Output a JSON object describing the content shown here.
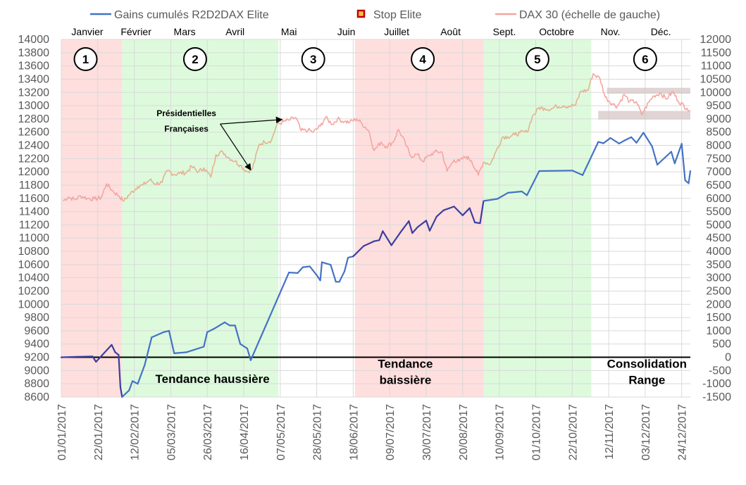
{
  "chart_data": {
    "type": "line",
    "legend_position": "top",
    "legend": [
      {
        "label": "Gains cumulés R2D2DAX Elite",
        "color": "#4472c4",
        "kind": "line"
      },
      {
        "label": "Stop Elite",
        "color": "#c00000",
        "kind": "marker"
      },
      {
        "label": "DAX 30 (échelle de gauche)",
        "color": "#f4a6a0",
        "kind": "line"
      }
    ],
    "left_axis": {
      "min": 8600,
      "max": 14000,
      "step": 200,
      "ticks": [
        "8600",
        "8800",
        "9000",
        "9200",
        "9400",
        "9600",
        "9800",
        "10000",
        "10200",
        "10400",
        "10600",
        "10800",
        "11000",
        "11200",
        "11400",
        "11600",
        "11800",
        "12000",
        "12200",
        "12400",
        "12600",
        "12800",
        "13000",
        "13200",
        "13400",
        "13600",
        "13800",
        "14000"
      ]
    },
    "right_axis": {
      "min": -1500,
      "max": 12000,
      "step": 500,
      "ticks": [
        "-1500",
        "-1000",
        "-500",
        "0",
        "500",
        "1000",
        "1500",
        "2000",
        "2500",
        "3000",
        "3500",
        "4000",
        "4500",
        "5000",
        "5500",
        "6000",
        "6500",
        "7000",
        "7500",
        "8000",
        "8500",
        "9000",
        "9500",
        "10000",
        "10500",
        "11000",
        "11500",
        "12000"
      ]
    },
    "x_axis": {
      "start": "2017-01-01",
      "end": "2017-12-29",
      "date_labels": [
        "01/01/2017",
        "22/01/2017",
        "12/02/2017",
        "05/03/2017",
        "26/03/2017",
        "16/04/2017",
        "07/05/2017",
        "28/05/2017",
        "18/06/2017",
        "09/07/2017",
        "30/07/2017",
        "20/08/2017",
        "10/09/2017",
        "01/10/2017",
        "22/10/2017",
        "12/11/2017",
        "03/12/2017",
        "24/12/2017"
      ]
    },
    "months": [
      {
        "label": "Janvier",
        "date": "2017-01-16"
      },
      {
        "label": "Février",
        "date": "2017-02-13"
      },
      {
        "label": "Mars",
        "date": "2017-03-13"
      },
      {
        "label": "Avril",
        "date": "2017-04-11"
      },
      {
        "label": "Mai",
        "date": "2017-05-12"
      },
      {
        "label": "Juin",
        "date": "2017-06-14"
      },
      {
        "label": "Juillet",
        "date": "2017-07-13"
      },
      {
        "label": "Août",
        "date": "2017-08-13"
      },
      {
        "label": "Sept.",
        "date": "2017-09-13"
      },
      {
        "label": "Octobre",
        "date": "2017-10-13"
      },
      {
        "label": "Nov.",
        "date": "2017-11-13"
      },
      {
        "label": "Déc.",
        "date": "2017-12-12"
      }
    ],
    "phases": [
      {
        "label": "1",
        "start": "2017-01-01",
        "end": "2017-02-05",
        "color": "#ffdede",
        "label_date": "2017-01-15"
      },
      {
        "label": "2",
        "start": "2017-02-05",
        "end": "2017-05-06",
        "color": "#ddfadd",
        "label_date": "2017-03-19"
      },
      {
        "label": "3",
        "start": "2017-05-06",
        "end": "2017-06-19",
        "color": "#ffffff",
        "label_date": "2017-05-26"
      },
      {
        "label": "4",
        "start": "2017-06-19",
        "end": "2017-09-01",
        "color": "#ffdede",
        "label_date": "2017-07-28"
      },
      {
        "label": "5",
        "start": "2017-09-01",
        "end": "2017-11-02",
        "color": "#ddfadd",
        "label_date": "2017-10-02"
      },
      {
        "label": "6",
        "start": "2017-11-02",
        "end": "2017-12-29",
        "color": "#ffffff",
        "label_date": "2017-12-03"
      }
    ],
    "trend_labels": [
      {
        "lines": [
          "Tendance haussière"
        ],
        "date": "2017-03-29",
        "left_value": 8810
      },
      {
        "lines": [
          "Tendance",
          "baissière"
        ],
        "date": "2017-07-18",
        "left_value": 9040
      },
      {
        "lines": [
          "Consolidation",
          "Range"
        ],
        "date": "2017-12-04",
        "left_value": 9040
      }
    ],
    "annotation": {
      "lines": [
        "Présidentielles",
        "Françaises"
      ],
      "date": "2017-03-14",
      "left_value": 12840,
      "arrow_targets": [
        {
          "date": "2017-05-08",
          "value": 12790
        },
        {
          "date": "2017-04-20",
          "value": 12030
        }
      ]
    },
    "range_boxes": [
      {
        "start": "2017-11-06",
        "end": "2017-12-29",
        "low": 12790,
        "high": 12920
      },
      {
        "start": "2017-11-11",
        "end": "2017-12-29",
        "low": 13180,
        "high": 13270
      }
    ],
    "zero_line": {
      "right_value": 0,
      "color": "#000000"
    },
    "dax": {
      "axis": "left",
      "color": "#f4a6a0",
      "points": [
        [
          "2017-01-02",
          11560
        ],
        [
          "2017-01-05",
          11620
        ],
        [
          "2017-01-09",
          11580
        ],
        [
          "2017-01-12",
          11640
        ],
        [
          "2017-01-16",
          11600
        ],
        [
          "2017-01-20",
          11590
        ],
        [
          "2017-01-24",
          11610
        ],
        [
          "2017-01-27",
          11820
        ],
        [
          "2017-01-31",
          11700
        ],
        [
          "2017-02-03",
          11640
        ],
        [
          "2017-02-06",
          11560
        ],
        [
          "2017-02-09",
          11650
        ],
        [
          "2017-02-14",
          11780
        ],
        [
          "2017-02-17",
          11800
        ],
        [
          "2017-02-21",
          11880
        ],
        [
          "2017-02-24",
          11820
        ],
        [
          "2017-02-28",
          11840
        ],
        [
          "2017-03-03",
          12020
        ],
        [
          "2017-03-07",
          11960
        ],
        [
          "2017-03-10",
          11980
        ],
        [
          "2017-03-14",
          11990
        ],
        [
          "2017-03-17",
          12080
        ],
        [
          "2017-03-21",
          12000
        ],
        [
          "2017-03-24",
          12060
        ],
        [
          "2017-03-28",
          11920
        ],
        [
          "2017-03-31",
          12260
        ],
        [
          "2017-04-04",
          12300
        ],
        [
          "2017-04-07",
          12220
        ],
        [
          "2017-04-11",
          12160
        ],
        [
          "2017-04-14",
          12100
        ],
        [
          "2017-04-18",
          12000
        ],
        [
          "2017-04-21",
          12050
        ],
        [
          "2017-04-25",
          12420
        ],
        [
          "2017-04-28",
          12450
        ],
        [
          "2017-05-02",
          12480
        ],
        [
          "2017-05-05",
          12710
        ],
        [
          "2017-05-09",
          12760
        ],
        [
          "2017-05-12",
          12780
        ],
        [
          "2017-05-16",
          12820
        ],
        [
          "2017-05-19",
          12620
        ],
        [
          "2017-05-23",
          12630
        ],
        [
          "2017-05-26",
          12600
        ],
        [
          "2017-05-30",
          12690
        ],
        [
          "2017-06-02",
          12820
        ],
        [
          "2017-06-06",
          12720
        ],
        [
          "2017-06-09",
          12800
        ],
        [
          "2017-06-13",
          12760
        ],
        [
          "2017-06-16",
          12750
        ],
        [
          "2017-06-20",
          12800
        ],
        [
          "2017-06-23",
          12730
        ],
        [
          "2017-06-27",
          12620
        ],
        [
          "2017-06-30",
          12320
        ],
        [
          "2017-07-04",
          12450
        ],
        [
          "2017-07-07",
          12380
        ],
        [
          "2017-07-11",
          12450
        ],
        [
          "2017-07-14",
          12640
        ],
        [
          "2017-07-18",
          12430
        ],
        [
          "2017-07-21",
          12240
        ],
        [
          "2017-07-25",
          12260
        ],
        [
          "2017-07-28",
          12160
        ],
        [
          "2017-08-01",
          12250
        ],
        [
          "2017-08-04",
          12300
        ],
        [
          "2017-08-08",
          12300
        ],
        [
          "2017-08-11",
          12010
        ],
        [
          "2017-08-15",
          12180
        ],
        [
          "2017-08-18",
          12160
        ],
        [
          "2017-08-22",
          12230
        ],
        [
          "2017-08-25",
          12170
        ],
        [
          "2017-08-29",
          11950
        ],
        [
          "2017-09-01",
          12150
        ],
        [
          "2017-09-05",
          12120
        ],
        [
          "2017-09-08",
          12300
        ],
        [
          "2017-09-12",
          12530
        ],
        [
          "2017-09-15",
          12530
        ],
        [
          "2017-09-19",
          12560
        ],
        [
          "2017-09-22",
          12590
        ],
        [
          "2017-09-26",
          12600
        ],
        [
          "2017-09-29",
          12830
        ],
        [
          "2017-10-03",
          12970
        ],
        [
          "2017-10-06",
          12960
        ],
        [
          "2017-10-10",
          12950
        ],
        [
          "2017-10-13",
          12990
        ],
        [
          "2017-10-17",
          13000
        ],
        [
          "2017-10-20",
          12990
        ],
        [
          "2017-10-24",
          13010
        ],
        [
          "2017-10-27",
          13220
        ],
        [
          "2017-10-31",
          13230
        ],
        [
          "2017-11-03",
          13480
        ],
        [
          "2017-11-07",
          13410
        ],
        [
          "2017-11-10",
          13130
        ],
        [
          "2017-11-14",
          13030
        ],
        [
          "2017-11-17",
          12990
        ],
        [
          "2017-11-21",
          13170
        ],
        [
          "2017-11-24",
          13060
        ],
        [
          "2017-11-28",
          13060
        ],
        [
          "2017-12-01",
          12860
        ],
        [
          "2017-12-05",
          13050
        ],
        [
          "2017-12-08",
          13150
        ],
        [
          "2017-12-12",
          13190
        ],
        [
          "2017-12-15",
          13100
        ],
        [
          "2017-12-19",
          13210
        ],
        [
          "2017-12-22",
          13070
        ],
        [
          "2017-12-27",
          12960
        ],
        [
          "2017-12-29",
          12920
        ]
      ]
    },
    "gains": {
      "axis": "right",
      "color": "#4472c4",
      "points": [
        [
          "2017-01-01",
          0
        ],
        [
          "2017-01-10",
          20
        ],
        [
          "2017-01-19",
          30
        ],
        [
          "2017-01-21",
          -170
        ],
        [
          "2017-01-30",
          470
        ],
        [
          "2017-02-01",
          190
        ],
        [
          "2017-02-03",
          90
        ],
        [
          "2017-02-04",
          -1120
        ],
        [
          "2017-02-05",
          -1500
        ],
        [
          "2017-02-09",
          -1250
        ],
        [
          "2017-02-11",
          -900
        ],
        [
          "2017-02-14",
          -1000
        ],
        [
          "2017-02-18",
          -290
        ],
        [
          "2017-02-22",
          750
        ],
        [
          "2017-03-01",
          950
        ],
        [
          "2017-03-04",
          1000
        ],
        [
          "2017-03-07",
          150
        ],
        [
          "2017-03-14",
          190
        ],
        [
          "2017-03-24",
          400
        ],
        [
          "2017-03-26",
          950
        ],
        [
          "2017-03-30",
          1080
        ],
        [
          "2017-04-05",
          1320
        ],
        [
          "2017-04-08",
          1200
        ],
        [
          "2017-04-11",
          1200
        ],
        [
          "2017-04-14",
          500
        ],
        [
          "2017-04-18",
          330
        ],
        [
          "2017-04-20",
          -110
        ],
        [
          "2017-05-12",
          3200
        ],
        [
          "2017-05-17",
          3180
        ],
        [
          "2017-05-20",
          3400
        ],
        [
          "2017-05-24",
          3430
        ],
        [
          "2017-05-28",
          3100
        ],
        [
          "2017-05-30",
          2900
        ],
        [
          "2017-05-31",
          3590
        ],
        [
          "2017-06-05",
          3490
        ],
        [
          "2017-06-08",
          2850
        ],
        [
          "2017-06-10",
          2850
        ],
        [
          "2017-06-13",
          3250
        ],
        [
          "2017-06-15",
          3760
        ],
        [
          "2017-06-18",
          3810
        ],
        [
          "2017-06-24",
          4200
        ],
        [
          "2017-06-30",
          4380
        ],
        [
          "2017-07-03",
          4420
        ],
        [
          "2017-07-05",
          4760
        ],
        [
          "2017-07-10",
          4230
        ],
        [
          "2017-07-15",
          4700
        ],
        [
          "2017-07-20",
          5140
        ],
        [
          "2017-07-22",
          4690
        ],
        [
          "2017-07-25",
          4910
        ],
        [
          "2017-07-30",
          5160
        ],
        [
          "2017-08-01",
          4780
        ],
        [
          "2017-08-05",
          5310
        ],
        [
          "2017-08-09",
          5550
        ],
        [
          "2017-08-15",
          5690
        ],
        [
          "2017-08-20",
          5360
        ],
        [
          "2017-08-24",
          5630
        ],
        [
          "2017-08-27",
          5090
        ],
        [
          "2017-08-30",
          5060
        ],
        [
          "2017-09-01",
          5900
        ],
        [
          "2017-09-05",
          5940
        ],
        [
          "2017-09-09",
          5980
        ],
        [
          "2017-09-15",
          6210
        ],
        [
          "2017-09-23",
          6260
        ],
        [
          "2017-09-26",
          6120
        ],
        [
          "2017-10-03",
          7030
        ],
        [
          "2017-10-22",
          7050
        ],
        [
          "2017-10-28",
          6880
        ],
        [
          "2017-11-06",
          8130
        ],
        [
          "2017-11-09",
          8080
        ],
        [
          "2017-11-13",
          8280
        ],
        [
          "2017-11-18",
          8070
        ],
        [
          "2017-11-21",
          8180
        ],
        [
          "2017-11-25",
          8310
        ],
        [
          "2017-11-28",
          8100
        ],
        [
          "2017-12-02",
          8480
        ],
        [
          "2017-12-07",
          7960
        ],
        [
          "2017-12-10",
          7270
        ],
        [
          "2017-12-18",
          7760
        ],
        [
          "2017-12-20",
          7320
        ],
        [
          "2017-12-24",
          8060
        ],
        [
          "2017-12-26",
          6680
        ],
        [
          "2017-12-28",
          6570
        ],
        [
          "2017-12-29",
          7030
        ]
      ]
    }
  }
}
